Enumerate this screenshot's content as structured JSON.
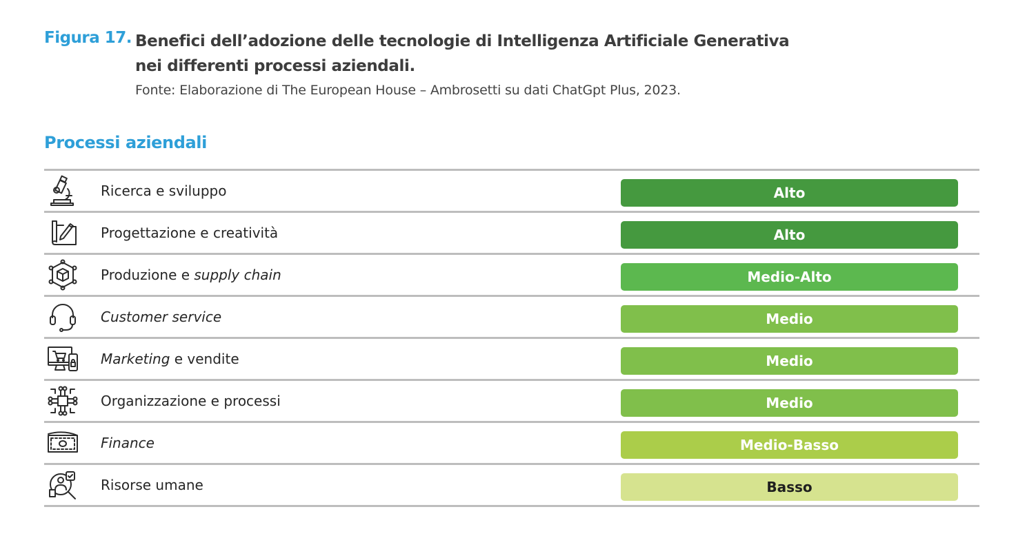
{
  "figure": {
    "label": "Figura 17.",
    "title_line1": "Benefici dell’adozione delle tecnologie di Intelligenza Artificiale Generativa",
    "title_line2": "nei differenti processi aziendali.",
    "source": "Fonte: Elaborazione di The European House – Ambrosetti su dati ChatGpt Plus, 2023."
  },
  "section_title": "Processi aziendali",
  "rows": [
    {
      "icon": "microscope-icon",
      "label_parts": [
        {
          "text": "Ricerca e sviluppo",
          "italic": false
        }
      ],
      "level": "Alto",
      "color": "#45993f",
      "text_color": "#ffffff"
    },
    {
      "icon": "design-pencil-icon",
      "label_parts": [
        {
          "text": "Progettazione e creatività",
          "italic": false
        }
      ],
      "level": "Alto",
      "color": "#45993f",
      "text_color": "#ffffff"
    },
    {
      "icon": "supply-chain-cube-icon",
      "label_parts": [
        {
          "text": "Produzione e ",
          "italic": false
        },
        {
          "text": "supply chain",
          "italic": true
        }
      ],
      "level": "Medio-Alto",
      "color": "#5cb84f",
      "text_color": "#ffffff"
    },
    {
      "icon": "headset-icon",
      "label_parts": [
        {
          "text": "Customer service",
          "italic": true
        }
      ],
      "level": "Medio",
      "color": "#80bf4b",
      "text_color": "#ffffff"
    },
    {
      "icon": "ecommerce-monitor-icon",
      "label_parts": [
        {
          "text": "Marketing",
          "italic": true
        },
        {
          "text": " e vendite",
          "italic": false
        }
      ],
      "level": "Medio",
      "color": "#80bf4b",
      "text_color": "#ffffff"
    },
    {
      "icon": "process-network-icon",
      "label_parts": [
        {
          "text": "Organizzazione e processi",
          "italic": false
        }
      ],
      "level": "Medio",
      "color": "#80bf4b",
      "text_color": "#ffffff"
    },
    {
      "icon": "banknote-icon",
      "label_parts": [
        {
          "text": "Finance",
          "italic": true
        }
      ],
      "level": "Medio-Basso",
      "color": "#abcd4a",
      "text_color": "#ffffff"
    },
    {
      "icon": "hr-search-icon",
      "label_parts": [
        {
          "text": "Risorse umane",
          "italic": false
        }
      ],
      "level": "Basso",
      "color": "#d6e38f",
      "text_color": "#1f1f1f"
    }
  ]
}
